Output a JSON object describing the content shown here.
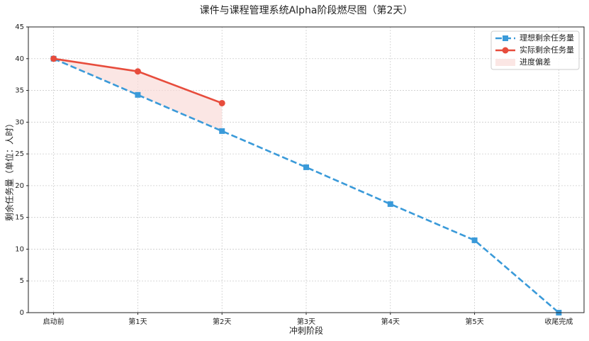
{
  "chart_data": {
    "type": "line",
    "title": "课件与课程管理系统Alpha阶段燃尽图（第2天）",
    "x_label": "冲刺阶段",
    "y_label": "剩余任务量（单位：人时）",
    "categories": [
      "启动前",
      "第1天",
      "第2天",
      "第3天",
      "第4天",
      "第5天",
      "收尾完成"
    ],
    "series": [
      {
        "name": "理想剩余任务量",
        "color": "#3a9ad9",
        "marker": "square",
        "dash": true,
        "values": [
          40,
          34.3,
          28.6,
          22.9,
          17.1,
          11.4,
          0
        ]
      },
      {
        "name": "实际剩余任务量",
        "color": "#e74c3c",
        "marker": "circle",
        "dash": false,
        "values": [
          40,
          38,
          33,
          null,
          null,
          null,
          null
        ]
      }
    ],
    "fill_between": {
      "name": "进度偏差",
      "color": "#fadbd8"
    },
    "ylim": [
      0,
      45
    ],
    "yticks": [
      0,
      5,
      10,
      15,
      20,
      25,
      30,
      35,
      40,
      45
    ],
    "grid": true,
    "legend": "upper right"
  }
}
